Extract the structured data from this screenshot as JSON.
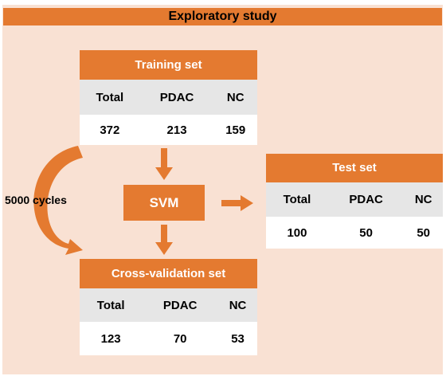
{
  "banner": {
    "title": "Exploratory study"
  },
  "training": {
    "title": "Training set",
    "headers": [
      "Total",
      "PDAC",
      "NC"
    ],
    "values": [
      "372",
      "213",
      "159"
    ]
  },
  "test": {
    "title": "Test set",
    "headers": [
      "Total",
      "PDAC",
      "NC"
    ],
    "values": [
      "100",
      "50",
      "50"
    ]
  },
  "cv": {
    "title": "Cross-validation set",
    "headers": [
      "Total",
      "PDAC",
      "NC"
    ],
    "values": [
      "123",
      "70",
      "53"
    ]
  },
  "svm": {
    "label": "SVM"
  },
  "cycles": {
    "label": "5000 cycles"
  },
  "colors": {
    "accent": "#e47a30",
    "panel": "#f9e1d3",
    "header_row": "#e6e6e6"
  }
}
